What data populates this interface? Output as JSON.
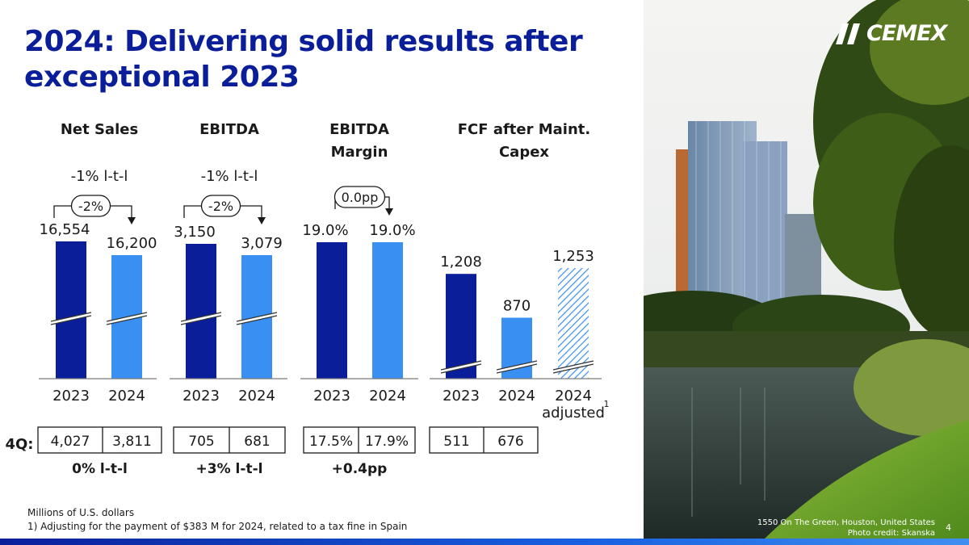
{
  "title": {
    "line1": "2024: Delivering solid results after",
    "line2": "exceptional 2023"
  },
  "logo": {
    "text": "CEMEX",
    "icon": "cemex-slash-mark-icon"
  },
  "colors": {
    "dark_blue": "#0a1e9a",
    "light_blue": "#3a8ff2",
    "text": "#1a1a1a"
  },
  "chart_data": [
    {
      "type": "bar",
      "title": "Net Sales",
      "categories": [
        "2023",
        "2024"
      ],
      "values": [
        16554,
        16200
      ],
      "value_labels": [
        "16,554",
        "16,200"
      ],
      "change_label": "-2%",
      "growth_label": "-1% l-t-l",
      "axis_break": true,
      "q4": {
        "label": "4Q:",
        "values": [
          "4,027",
          "3,811"
        ],
        "change": "0% l-t-l"
      }
    },
    {
      "type": "bar",
      "title": "EBITDA",
      "categories": [
        "2023",
        "2024"
      ],
      "values": [
        3150,
        3079
      ],
      "value_labels": [
        "3,150",
        "3,079"
      ],
      "change_label": "-2%",
      "growth_label": "-1% l-t-l",
      "axis_break": true,
      "q4": {
        "values": [
          "705",
          "681"
        ],
        "change": "+3% l-t-l"
      }
    },
    {
      "type": "bar",
      "title": "EBITDA Margin",
      "title_lines": [
        "EBITDA",
        "Margin"
      ],
      "categories": [
        "2023",
        "2024"
      ],
      "values": [
        19.0,
        19.0
      ],
      "value_labels": [
        "19.0%",
        "19.0%"
      ],
      "change_label": "0.0pp",
      "axis_break": false,
      "q4": {
        "values": [
          "17.5%",
          "17.9%"
        ],
        "change": "+0.4pp"
      }
    },
    {
      "type": "bar",
      "title": "FCF after Maint. Capex",
      "title_lines": [
        "FCF after Maint.",
        "Capex"
      ],
      "categories": [
        "2023",
        "2024",
        "2024 adjusted"
      ],
      "category_lines": [
        [
          "2023"
        ],
        [
          "2024"
        ],
        [
          "2024",
          "adjusted"
        ]
      ],
      "category_superscript": "1",
      "values": [
        1208,
        870,
        1253
      ],
      "value_labels": [
        "1,208",
        "870",
        "1,253"
      ],
      "hatched": [
        false,
        false,
        true
      ],
      "axis_break": true,
      "q4": {
        "values": [
          "511",
          "676"
        ]
      }
    }
  ],
  "footnotes": {
    "units": "Millions of U.S. dollars",
    "note1": "1)   Adjusting for the payment of $383 M for 2024, related to a tax fine in Spain"
  },
  "photo": {
    "caption_line1": "1550 On The Green, Houston, United States",
    "caption_line2": "Photo credit: Skanska"
  },
  "page_number": "4"
}
